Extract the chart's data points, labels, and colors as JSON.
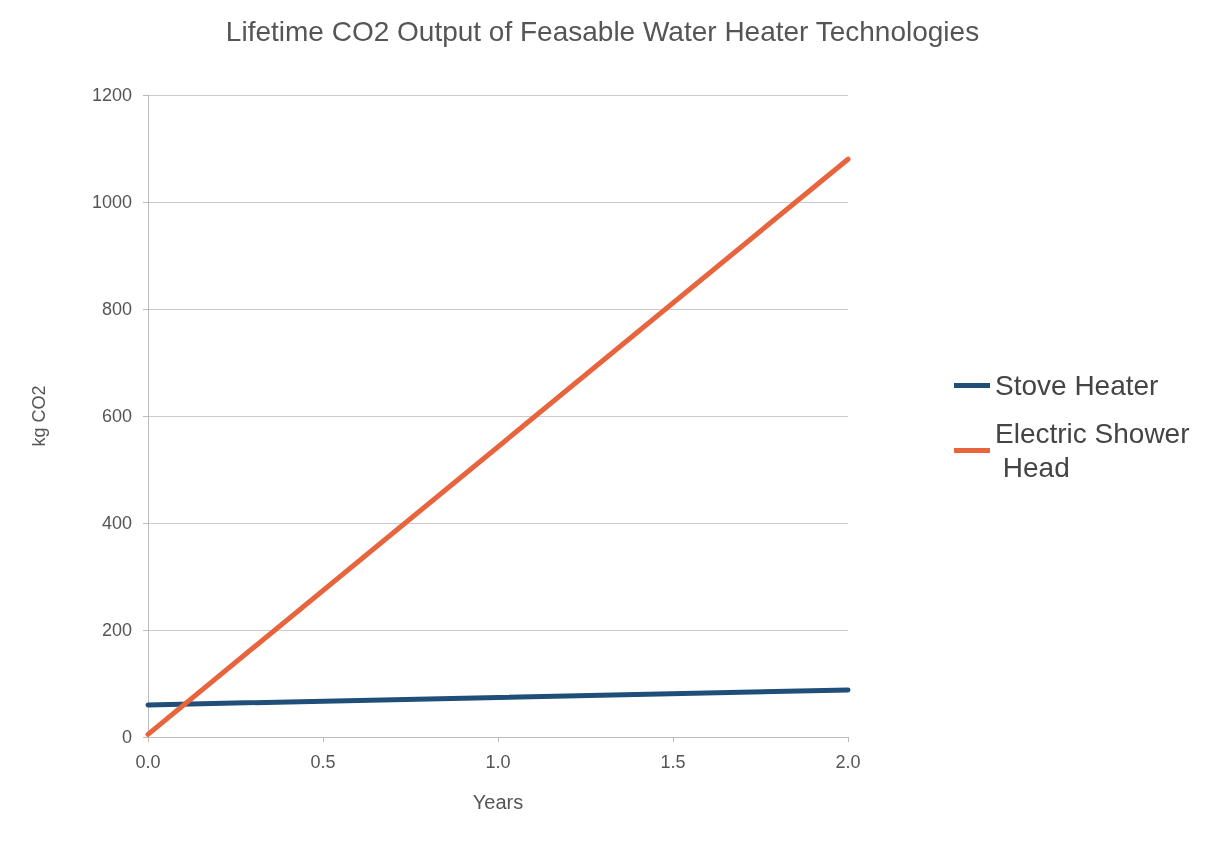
{
  "chart_data": {
    "type": "line",
    "title": "Lifetime CO2 Output of Feasable Water Heater Technologies",
    "xlabel": "Years",
    "ylabel": "kg CO2",
    "x": [
      0,
      2
    ],
    "series": [
      {
        "name": "Stove Heater",
        "color": "#1f4e79",
        "values": [
          60,
          88
        ]
      },
      {
        "name": "Electric Shower Head",
        "color": "#e8643c",
        "values": [
          5,
          1080
        ]
      }
    ],
    "xlim": [
      0,
      2
    ],
    "xticks": [
      {
        "value": 0,
        "label": "0.0"
      },
      {
        "value": 0.5,
        "label": "0.5"
      },
      {
        "value": 1,
        "label": "1.0"
      },
      {
        "value": 1.5,
        "label": "1.5"
      },
      {
        "value": 2,
        "label": "2.0"
      }
    ],
    "ylim": [
      0,
      1200
    ],
    "yticks": [
      0,
      200,
      400,
      600,
      800,
      1000,
      1200
    ],
    "grid": "y",
    "legend": "right",
    "marker": "none",
    "line_style": "solid"
  }
}
